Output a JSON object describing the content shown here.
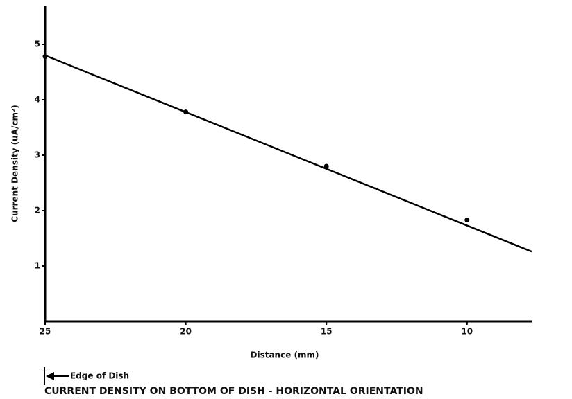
{
  "chart_data": {
    "type": "line",
    "title": "CURRENT DENSITY ON BOTTOM OF DISH - HORIZONTAL ORIENTATION",
    "x_label": "Distance (mm)",
    "y_label": "Current Density (uA/cm²)",
    "annotation": "Edge of Dish",
    "series": [
      {
        "x": [
          25,
          20,
          15,
          10
        ],
        "values": [
          4.78,
          3.78,
          2.8,
          1.83
        ],
        "color": "#000000",
        "markers": true,
        "line": false
      },
      {
        "x": [
          25,
          7.7
        ],
        "values": [
          4.8,
          1.26
        ],
        "color": "#000000",
        "markers": false,
        "line": true
      }
    ],
    "xlim": [
      25,
      7.7
    ],
    "xticks": [
      25,
      20,
      15,
      10
    ],
    "ylim": [
      0,
      5.7
    ],
    "yticks": [
      1,
      2,
      3,
      4,
      5
    ],
    "grid": false
  }
}
